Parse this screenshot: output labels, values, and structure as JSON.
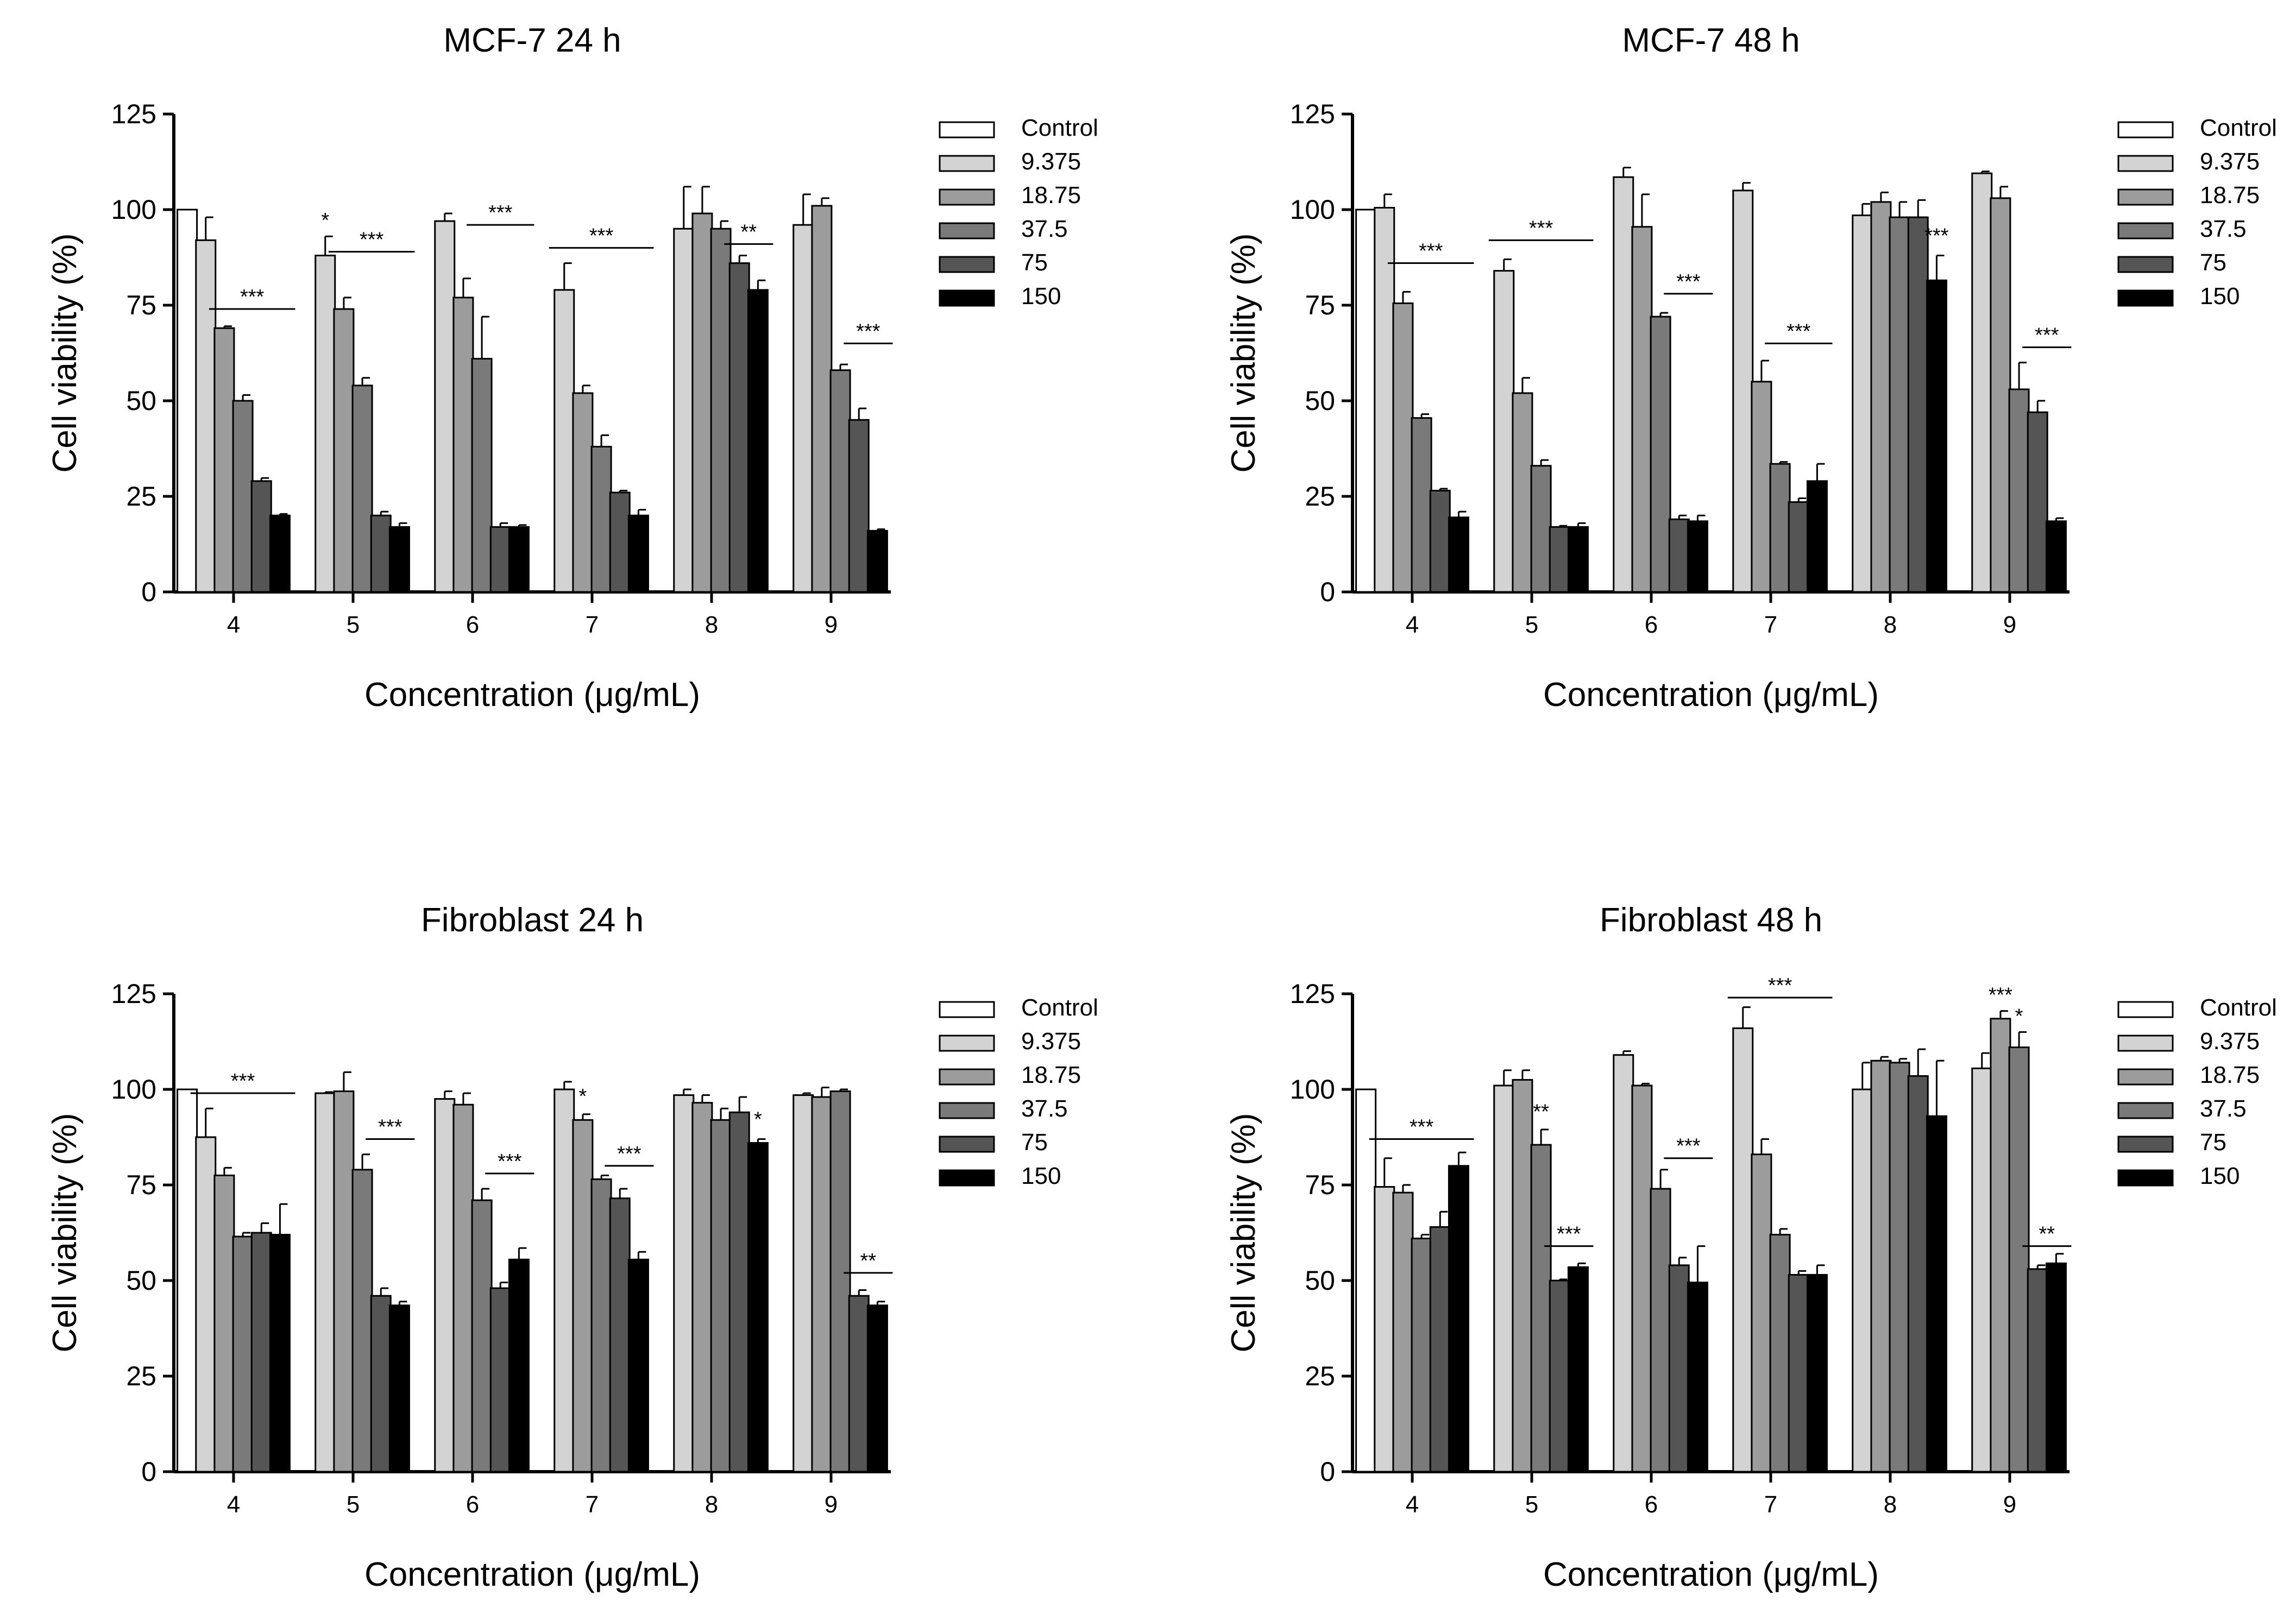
{
  "legend_labels": [
    "Control",
    "9.375",
    "18.75",
    "37.5",
    "75",
    "150"
  ],
  "series_colors": [
    "#ffffff",
    "#d3d3d3",
    "#9c9c9c",
    "#7a7a7a",
    "#555555",
    "#000000"
  ],
  "chart_data": [
    {
      "type": "bar",
      "title": "MCF-7 24 h",
      "xlabel": "Concentration (μg/mL)",
      "ylabel": "Cell viability (%)",
      "ylim": [
        0,
        125
      ],
      "yticks": [
        0,
        25,
        50,
        75,
        100,
        125
      ],
      "categories": [
        "4",
        "5",
        "6",
        "7",
        "8",
        "9"
      ],
      "legend_position": "right",
      "series": [
        {
          "name": "Control",
          "values": [
            100,
            null,
            null,
            null,
            null,
            null
          ],
          "errors": [
            0,
            0,
            0,
            0,
            0,
            0
          ]
        },
        {
          "name": "9.375",
          "values": [
            92,
            88,
            97,
            79,
            95,
            96
          ],
          "errors": [
            6,
            5,
            2,
            7,
            11,
            8
          ]
        },
        {
          "name": "18.75",
          "values": [
            69,
            74,
            77,
            52,
            99,
            101
          ],
          "errors": [
            0.5,
            3,
            5,
            2,
            7,
            2
          ]
        },
        {
          "name": "37.5",
          "values": [
            50,
            54,
            61,
            38,
            95,
            58
          ],
          "errors": [
            1.5,
            2,
            11,
            3,
            2,
            1.5
          ]
        },
        {
          "name": "75",
          "values": [
            29,
            20,
            17,
            26,
            86,
            45
          ],
          "errors": [
            0.8,
            1,
            1,
            0.5,
            2,
            3
          ]
        },
        {
          "name": "150",
          "values": [
            20,
            17,
            17,
            20,
            79,
            16
          ],
          "errors": [
            0.4,
            1,
            0.5,
            1.5,
            2.5,
            0.4
          ]
        }
      ],
      "annotations": [
        {
          "text": "***",
          "group": 0,
          "from": 2,
          "to": 5,
          "y": 74,
          "line": true
        },
        {
          "text": "*",
          "group": 1,
          "from": 1,
          "to": 1,
          "y": 94,
          "line": false
        },
        {
          "text": "***",
          "group": 1,
          "from": 2,
          "to": 5,
          "y": 89,
          "line": true
        },
        {
          "text": "***",
          "group": 2,
          "from": 3,
          "to": 5,
          "y": 96,
          "line": true
        },
        {
          "text": "***",
          "group": 3,
          "from": 1,
          "to": 5,
          "y": 90,
          "line": true
        },
        {
          "text": "**",
          "group": 4,
          "from": 4,
          "to": 5,
          "y": 91,
          "line": true
        },
        {
          "text": "***",
          "group": 5,
          "from": 4,
          "to": 5,
          "y": 65,
          "line": true
        }
      ]
    },
    {
      "type": "bar",
      "title": "MCF-7 48 h",
      "xlabel": "Concentration (μg/mL)",
      "ylabel": "Cell viability (%)",
      "ylim": [
        0,
        125
      ],
      "yticks": [
        0,
        25,
        50,
        75,
        100,
        125
      ],
      "categories": [
        "4",
        "5",
        "6",
        "7",
        "8",
        "9"
      ],
      "legend_position": "right",
      "series": [
        {
          "name": "Control",
          "values": [
            100,
            null,
            null,
            null,
            null,
            null
          ],
          "errors": [
            0,
            0,
            0,
            0,
            0,
            0
          ]
        },
        {
          "name": "9.375",
          "values": [
            100.5,
            84,
            108.5,
            105,
            98.5,
            109.5
          ],
          "errors": [
            3.5,
            3,
            2.5,
            2,
            3,
            0.5
          ]
        },
        {
          "name": "18.75",
          "values": [
            75.5,
            52,
            95.5,
            55,
            102,
            103
          ],
          "errors": [
            3,
            4,
            8.5,
            5.5,
            2.5,
            3
          ]
        },
        {
          "name": "37.5",
          "values": [
            45.5,
            33,
            72,
            33.5,
            98,
            53
          ],
          "errors": [
            1,
            1.5,
            1,
            0.5,
            4,
            7
          ]
        },
        {
          "name": "75",
          "values": [
            26.5,
            17,
            19,
            23.5,
            98,
            47
          ],
          "errors": [
            0.5,
            0.3,
            1,
            1,
            4.5,
            3
          ]
        },
        {
          "name": "150",
          "values": [
            19.5,
            17,
            18.5,
            29,
            81.5,
            18.5
          ],
          "errors": [
            1.5,
            1,
            1.5,
            4.5,
            6.5,
            0.8
          ]
        }
      ],
      "annotations": [
        {
          "text": "***",
          "group": 0,
          "from": 2,
          "to": 5,
          "y": 86,
          "line": true
        },
        {
          "text": "***",
          "group": 1,
          "from": 1,
          "to": 5,
          "y": 92,
          "line": true
        },
        {
          "text": "***",
          "group": 2,
          "from": 4,
          "to": 5,
          "y": 78,
          "line": true
        },
        {
          "text": "***",
          "group": 3,
          "from": 3,
          "to": 5,
          "y": 65,
          "line": true
        },
        {
          "text": "***",
          "group": 4,
          "from": 5,
          "to": 5,
          "y": 90,
          "line": false
        },
        {
          "text": "***",
          "group": 5,
          "from": 4,
          "to": 5,
          "y": 64,
          "line": true
        }
      ]
    },
    {
      "type": "bar",
      "title": "Fibroblast 24 h",
      "xlabel": "Concentration (μg/mL)",
      "ylabel": "Cell viability (%)",
      "ylim": [
        0,
        125
      ],
      "yticks": [
        0,
        25,
        50,
        75,
        100,
        125
      ],
      "categories": [
        "4",
        "5",
        "6",
        "7",
        "8",
        "9"
      ],
      "legend_position": "right",
      "series": [
        {
          "name": "Control",
          "values": [
            100,
            null,
            null,
            null,
            null,
            null
          ],
          "errors": [
            0,
            0,
            0,
            0,
            0,
            0
          ]
        },
        {
          "name": "9.375",
          "values": [
            87.5,
            99,
            97.5,
            100,
            98.5,
            98.5
          ],
          "errors": [
            7.5,
            0.3,
            2,
            2,
            1.5,
            0.5
          ]
        },
        {
          "name": "18.75",
          "values": [
            77.5,
            99.5,
            96,
            92,
            96.5,
            98
          ],
          "errors": [
            2,
            5,
            3,
            1.5,
            2,
            2.5
          ]
        },
        {
          "name": "37.5",
          "values": [
            61.5,
            79,
            71,
            76.5,
            92,
            99.5
          ],
          "errors": [
            1,
            4,
            3,
            1,
            3,
            0.5
          ]
        },
        {
          "name": "75",
          "values": [
            62.5,
            46,
            48,
            71.5,
            94,
            46
          ],
          "errors": [
            2.5,
            2,
            1.5,
            2.5,
            4,
            1.5
          ]
        },
        {
          "name": "150",
          "values": [
            62,
            43.5,
            55.5,
            55.5,
            86,
            43.5
          ],
          "errors": [
            8,
            1,
            3,
            2,
            1,
            1
          ]
        }
      ],
      "annotations": [
        {
          "text": "***",
          "group": 0,
          "from": 1,
          "to": 5,
          "y": 99,
          "line": true
        },
        {
          "text": "***",
          "group": 1,
          "from": 4,
          "to": 5,
          "y": 87,
          "line": true
        },
        {
          "text": "***",
          "group": 2,
          "from": 4,
          "to": 5,
          "y": 78,
          "line": true
        },
        {
          "text": "*",
          "group": 3,
          "from": 2,
          "to": 2,
          "y": 95,
          "line": false
        },
        {
          "text": "***",
          "group": 3,
          "from": 4,
          "to": 5,
          "y": 80,
          "line": true
        },
        {
          "text": "*",
          "group": 4,
          "from": 5,
          "to": 5,
          "y": 89,
          "line": false
        },
        {
          "text": "**",
          "group": 5,
          "from": 4,
          "to": 5,
          "y": 52,
          "line": true
        }
      ]
    },
    {
      "type": "bar",
      "title": "Fibroblast 48 h",
      "xlabel": "Concentration (μg/mL)",
      "ylabel": "Cell viability (%)",
      "ylim": [
        0,
        125
      ],
      "yticks": [
        0,
        25,
        50,
        75,
        100,
        125
      ],
      "categories": [
        "4",
        "5",
        "6",
        "7",
        "8",
        "9"
      ],
      "legend_position": "right",
      "series": [
        {
          "name": "Control",
          "values": [
            100,
            null,
            null,
            null,
            null,
            null
          ],
          "errors": [
            0,
            0,
            0,
            0,
            0,
            0
          ]
        },
        {
          "name": "9.375",
          "values": [
            74.5,
            101,
            109,
            116,
            100,
            105.5
          ],
          "errors": [
            7.5,
            4,
            1,
            5.5,
            7,
            4
          ]
        },
        {
          "name": "18.75",
          "values": [
            73,
            102.5,
            101,
            83,
            107.5,
            118.5
          ],
          "errors": [
            2,
            2.5,
            0.5,
            4,
            1,
            2
          ]
        },
        {
          "name": "37.5",
          "values": [
            61,
            85.5,
            74,
            62,
            107,
            111
          ],
          "errors": [
            1,
            4,
            5,
            1.5,
            1,
            4
          ]
        },
        {
          "name": "75",
          "values": [
            64,
            50,
            54,
            51.5,
            103.5,
            53
          ],
          "errors": [
            4,
            0.3,
            2,
            1,
            7,
            1
          ]
        },
        {
          "name": "150",
          "values": [
            80,
            53.5,
            49.5,
            51.5,
            93,
            54.5
          ],
          "errors": [
            3.5,
            1,
            9.5,
            2.5,
            14.5,
            2.5
          ]
        }
      ],
      "annotations": [
        {
          "text": "***",
          "group": 0,
          "from": 1,
          "to": 5,
          "y": 87,
          "line": true
        },
        {
          "text": "**",
          "group": 1,
          "from": 3,
          "to": 3,
          "y": 91,
          "line": false
        },
        {
          "text": "***",
          "group": 1,
          "from": 4,
          "to": 5,
          "y": 59,
          "line": true
        },
        {
          "text": "***",
          "group": 2,
          "from": 4,
          "to": 5,
          "y": 82,
          "line": true
        },
        {
          "text": "***",
          "group": 3,
          "from": 1,
          "to": 5,
          "y": 124,
          "line": true
        },
        {
          "text": "***",
          "group": 5,
          "from": 2,
          "to": 2,
          "y": 121.5,
          "line": false
        },
        {
          "text": "*",
          "group": 5,
          "from": 3,
          "to": 3,
          "y": 116,
          "line": false
        },
        {
          "text": "**",
          "group": 5,
          "from": 4,
          "to": 5,
          "y": 59,
          "line": true
        }
      ]
    }
  ]
}
